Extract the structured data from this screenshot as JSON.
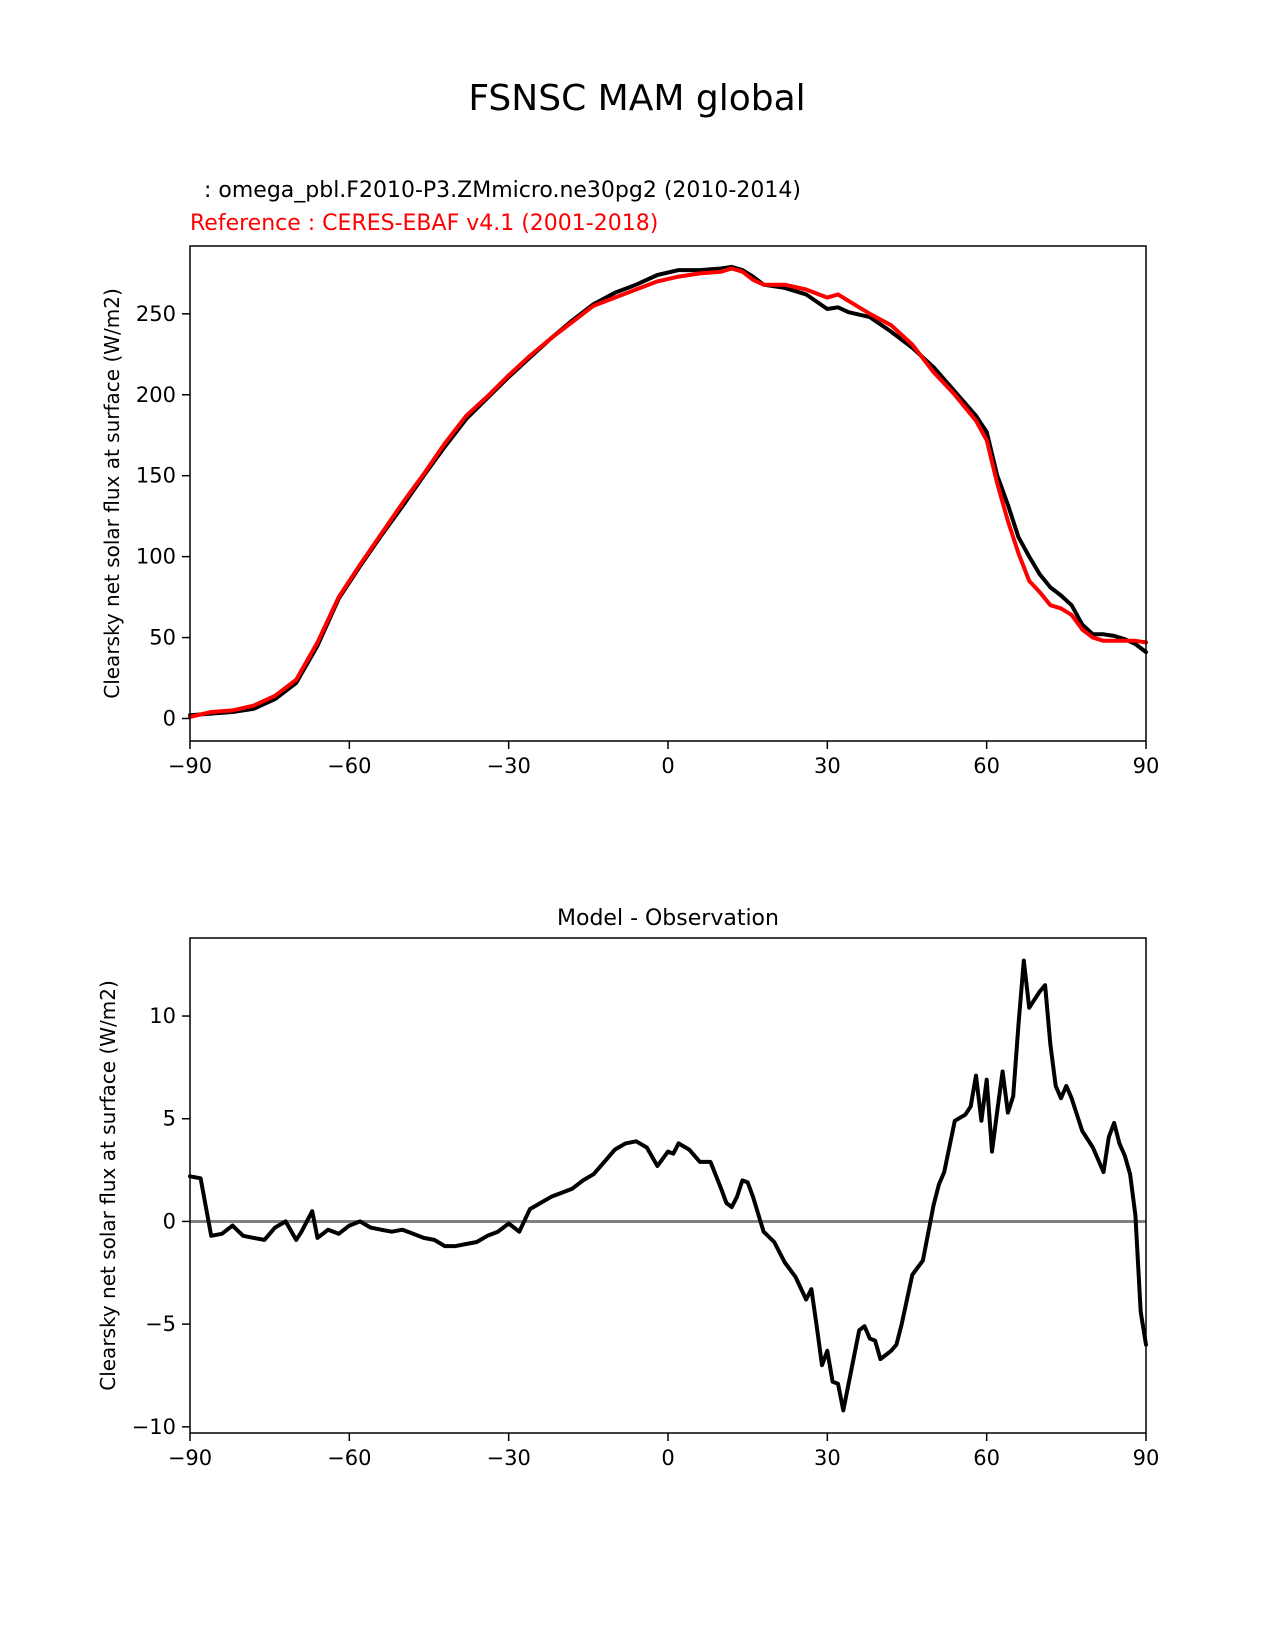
{
  "figure": {
    "title": "FSNSC MAM global"
  },
  "colors": {
    "model": "#000000",
    "reference": "#ff0000",
    "zero_line": "#808080"
  },
  "chart_data": [
    {
      "type": "line",
      "subtitle_test": "  : omega_pbl.F2010-P3.ZMmicro.ne30pg2 (2010-2014)",
      "subtitle_ref": "Reference : CERES-EBAF v4.1 (2001-2018)",
      "xlabel": "",
      "ylabel": "Clearsky net solar flux at surface (W/m2)",
      "xlim": [
        -90,
        90
      ],
      "ylim": [
        -13.9,
        291.9
      ],
      "xticks": [
        -90,
        -60,
        -30,
        0,
        30,
        60,
        90
      ],
      "yticks": [
        0,
        50,
        100,
        150,
        200,
        250
      ],
      "series": [
        {
          "name": "omega_pbl.F2010-P3.ZMmicro.ne30pg2",
          "color": "#000000",
          "x": [
            -90,
            -86,
            -82,
            -78,
            -74,
            -70,
            -66,
            -62,
            -58,
            -54,
            -50,
            -46,
            -42,
            -38,
            -34,
            -30,
            -26,
            -22,
            -18,
            -14,
            -10,
            -6,
            -2,
            2,
            6,
            10,
            12,
            14,
            16,
            18,
            22,
            26,
            30,
            32,
            34,
            38,
            42,
            46,
            50,
            54,
            58,
            60,
            62,
            64,
            66,
            68,
            70,
            72,
            74,
            76,
            78,
            80,
            82,
            84,
            86,
            88,
            90
          ],
          "y": [
            2,
            3,
            4,
            6,
            12,
            22,
            45,
            74,
            94,
            113,
            131,
            150,
            168,
            185,
            198,
            211,
            223,
            235,
            246,
            256,
            263,
            268,
            274,
            277,
            277,
            278,
            279,
            277,
            273,
            268,
            266,
            262,
            253,
            254,
            251,
            248,
            239,
            229,
            217,
            202,
            187,
            177,
            150,
            132,
            112,
            100,
            89,
            81,
            76,
            70,
            58,
            52,
            52,
            51,
            49,
            46,
            41
          ]
        },
        {
          "name": "CERES-EBAF v4.1",
          "color": "#ff0000",
          "x": [
            -90,
            -86,
            -82,
            -78,
            -74,
            -70,
            -66,
            -62,
            -58,
            -54,
            -50,
            -46,
            -42,
            -38,
            -34,
            -30,
            -26,
            -22,
            -18,
            -14,
            -10,
            -6,
            -2,
            2,
            6,
            10,
            12,
            14,
            16,
            18,
            22,
            26,
            30,
            32,
            34,
            38,
            42,
            46,
            50,
            54,
            58,
            60,
            62,
            64,
            66,
            68,
            70,
            72,
            74,
            76,
            78,
            80,
            82,
            84,
            86,
            88,
            90
          ],
          "y": [
            1,
            4,
            5,
            8,
            14,
            24,
            47,
            75,
            95,
            114,
            133,
            151,
            170,
            187,
            199,
            212,
            224,
            235,
            245,
            255,
            260,
            265,
            270,
            273,
            275,
            276,
            278,
            276,
            271,
            268,
            268,
            265,
            260,
            262,
            258,
            250,
            243,
            231,
            214,
            200,
            184,
            172,
            145,
            122,
            102,
            85,
            78,
            70,
            68,
            64,
            55,
            50,
            48,
            48,
            48,
            48,
            47
          ]
        }
      ]
    },
    {
      "type": "line",
      "title": "Model - Observation",
      "xlabel": "",
      "ylabel": "Clearsky net solar flux at surface (W/m2)",
      "xlim": [
        -90,
        90
      ],
      "ylim": [
        -10.3,
        13.8
      ],
      "xticks": [
        -90,
        -60,
        -30,
        0,
        30,
        60,
        90
      ],
      "yticks": [
        -10,
        -5,
        0,
        5,
        10
      ],
      "zero_line": true,
      "series": [
        {
          "name": "Model - Observation",
          "color": "#000000",
          "x": [
            -90,
            -88,
            -86,
            -84,
            -82,
            -80,
            -78,
            -76,
            -74,
            -72,
            -70,
            -69,
            -67,
            -66,
            -64,
            -62,
            -60,
            -58,
            -56,
            -54,
            -52,
            -50,
            -48,
            -46,
            -44,
            -42,
            -40,
            -38,
            -36,
            -34,
            -32,
            -30,
            -28,
            -26,
            -24,
            -22,
            -20,
            -18,
            -16,
            -14,
            -12,
            -10,
            -8,
            -6,
            -4,
            -2,
            0,
            1,
            2,
            4,
            6,
            8,
            10,
            11,
            12,
            13,
            14,
            15,
            16,
            18,
            20,
            22,
            24,
            26,
            27,
            28,
            29,
            30,
            31,
            32,
            33,
            34,
            36,
            37,
            38,
            39,
            40,
            41,
            42,
            43,
            44,
            46,
            48,
            50,
            51,
            52,
            54,
            56,
            57,
            58,
            59,
            60,
            61,
            62,
            63,
            64,
            65,
            66,
            67,
            68,
            69,
            70,
            71,
            72,
            73,
            74,
            75,
            76,
            78,
            80,
            82,
            83,
            84,
            85,
            86,
            87,
            88,
            89,
            90
          ],
          "y": [
            2.2,
            2.1,
            -0.7,
            -0.6,
            -0.2,
            -0.7,
            -0.8,
            -0.9,
            -0.3,
            0,
            -0.9,
            -0.5,
            0.5,
            -0.8,
            -0.4,
            -0.6,
            -0.2,
            0,
            -0.3,
            -0.4,
            -0.5,
            -0.4,
            -0.6,
            -0.8,
            -0.9,
            -1.2,
            -1.2,
            -1.1,
            -1,
            -0.7,
            -0.5,
            -0.1,
            -0.5,
            0.6,
            0.9,
            1.2,
            1.4,
            1.6,
            2.0,
            2.3,
            2.9,
            3.5,
            3.8,
            3.9,
            3.6,
            2.7,
            3.4,
            3.3,
            3.8,
            3.5,
            2.9,
            2.9,
            1.6,
            0.9,
            0.7,
            1.2,
            2.0,
            1.9,
            1.2,
            -0.5,
            -1.0,
            -2.0,
            -2.7,
            -3.8,
            -3.3,
            -5.1,
            -7.0,
            -6.3,
            -7.8,
            -7.9,
            -9.2,
            -7.9,
            -5.3,
            -5.1,
            -5.7,
            -5.8,
            -6.7,
            -6.5,
            -6.3,
            -6.0,
            -5.0,
            -2.6,
            -1.9,
            0.8,
            1.8,
            2.4,
            4.9,
            5.2,
            5.6,
            7.1,
            4.9,
            6.9,
            3.4,
            5.4,
            7.3,
            5.3,
            6.1,
            9.6,
            12.7,
            10.4,
            10.8,
            11.2,
            11.5,
            8.6,
            6.6,
            6.0,
            6.6,
            6.0,
            4.4,
            3.6,
            2.4,
            4.1,
            4.8,
            3.8,
            3.2,
            2.3,
            0.3,
            -4.4,
            -6.0
          ]
        }
      ]
    }
  ]
}
